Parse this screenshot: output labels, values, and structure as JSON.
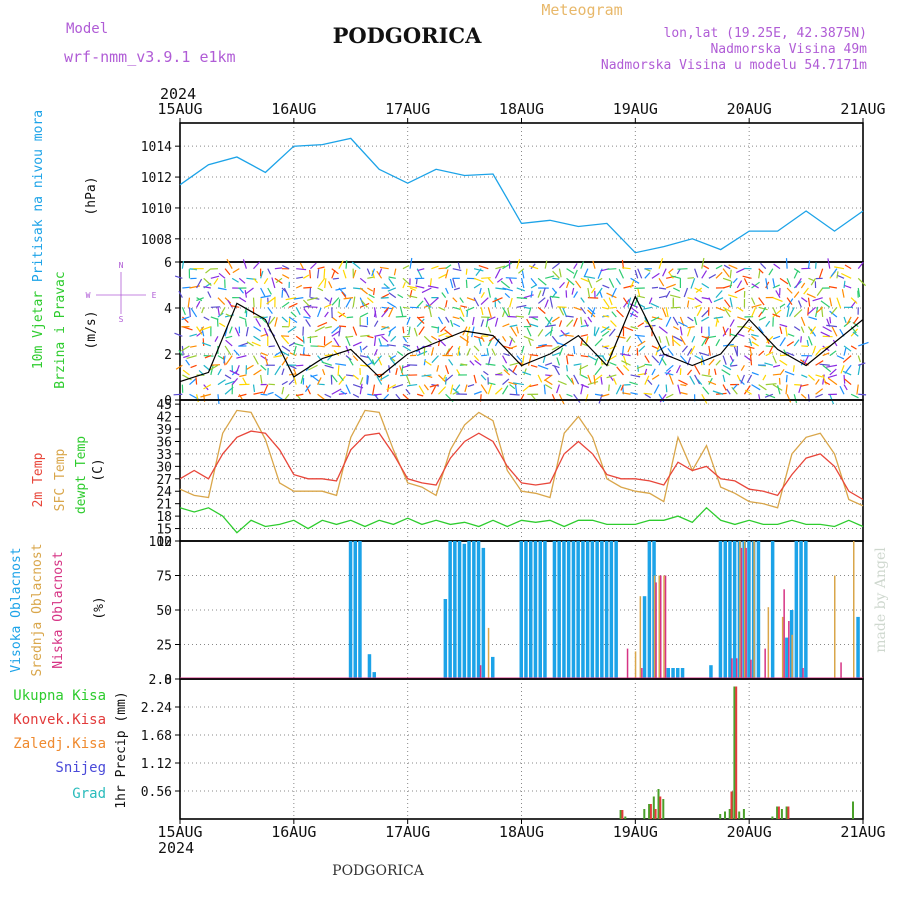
{
  "header": {
    "model_label": "Model",
    "model_name": "wrf-nmm_v3.9.1 e1km",
    "title": "PODGORICA",
    "product": "Meteogram",
    "lonlat": "lon,lat (19.25E, 42.3875N)",
    "elevation": "Nadmorska Visina 49m",
    "model_elevation": "Nadmorska Visina u modelu 54.7171m"
  },
  "time_axis": {
    "year": "2024",
    "labels": [
      "15AUG",
      "16AUG",
      "17AUG",
      "18AUG",
      "19AUG",
      "20AUG",
      "21AUG"
    ]
  },
  "footer": {
    "station": "PODGORICA",
    "credit": "made by Angel"
  },
  "colors": {
    "pressure": "#1ca3e8",
    "temp2m": "#e8463a",
    "sfc": "#d9a64a",
    "dewpt": "#2ecc2e",
    "cloud_high": "#1ca3e8",
    "cloud_mid": "#d9a64a",
    "cloud_low": "#d63384",
    "precip_total": "#4aa02a",
    "precip_conv": "#e23b3b",
    "precip_snow": "#4a4ad9",
    "precip_grad": "#2abcbc"
  },
  "panels": {
    "pressure": {
      "label": "Pritisak na nivou mora",
      "unit": "(hPa)"
    },
    "wind": {
      "label1": "10m Vjetar",
      "label2": "Brzina i Pravac",
      "unit": "(m/s)",
      "compass_s": "S",
      "compass_n": "N",
      "compass_w": "W",
      "compass_e": "E"
    },
    "temp": {
      "label_2m": "2m Temp",
      "label_sfc": "SFC Temp",
      "label_dew": "dewpt Temp",
      "unit": "(C)"
    },
    "cloud": {
      "label_high": "Visoka Oblacnost",
      "label_mid": "Srednja Oblacnost",
      "label_low": "Niska Oblacnost",
      "unit": "(%)"
    },
    "precip": {
      "legend": [
        "Ukupna Kisa",
        "Konvek.Kisa",
        "Zaledj.Kisa",
        "Snijeg",
        "Grad"
      ],
      "unit": "1hr Precip (mm)"
    }
  },
  "chart_data": [
    {
      "type": "line",
      "title": "Pritisak na nivou mora",
      "ylabel": "(hPa)",
      "ylim": [
        1006.5,
        1015.5
      ],
      "yticks": [
        "1008",
        "1010",
        "1012",
        "1014"
      ],
      "x_hours": [
        0,
        6,
        12,
        18,
        24,
        30,
        36,
        42,
        48,
        54,
        60,
        66,
        72,
        78,
        84,
        90,
        96,
        102,
        108,
        114,
        120,
        126,
        132,
        138,
        144
      ],
      "series": [
        {
          "values": [
            1011.5,
            1012.8,
            1013.3,
            1012.3,
            1014.0,
            1014.1,
            1014.5,
            1012.5,
            1011.6,
            1012.5,
            1012.1,
            1012.2,
            1009.0,
            1009.2,
            1008.8,
            1009.0,
            1007.1,
            1007.5,
            1008.0,
            1007.3,
            1008.5,
            1008.5,
            1009.8,
            1008.5,
            1009.8
          ]
        }
      ],
      "grid": true
    },
    {
      "type": "line",
      "title": "10m Vjetar Brzina i Pravac",
      "ylabel": "(m/s)",
      "ylim": [
        0,
        6
      ],
      "yticks": [
        "0",
        "2",
        "4",
        "6"
      ],
      "x_hours": [
        0,
        6,
        12,
        18,
        24,
        30,
        36,
        42,
        48,
        54,
        60,
        66,
        72,
        78,
        84,
        90,
        96,
        102,
        108,
        114,
        120,
        126,
        132,
        138,
        144
      ],
      "series": [
        {
          "values": [
            0.8,
            1.2,
            4.2,
            3.5,
            1.0,
            1.8,
            2.2,
            1.0,
            2.0,
            2.5,
            3.0,
            2.8,
            1.5,
            2.0,
            2.8,
            1.5,
            4.5,
            2.0,
            1.5,
            2.0,
            3.5,
            2.2,
            1.5,
            2.5,
            3.5
          ]
        }
      ],
      "grid": true
    },
    {
      "type": "line",
      "title": "2m Temp / SFC Temp / dewpt Temp",
      "ylabel": "(C)",
      "ylim": [
        12,
        46
      ],
      "yticks": [
        "12",
        "15",
        "18",
        "21",
        "24",
        "27",
        "30",
        "33",
        "36",
        "39",
        "42",
        "45"
      ],
      "x_hours": [
        0,
        3,
        6,
        9,
        12,
        15,
        18,
        21,
        24,
        27,
        30,
        33,
        36,
        39,
        42,
        45,
        48,
        51,
        54,
        57,
        60,
        63,
        66,
        69,
        72,
        75,
        78,
        81,
        84,
        87,
        90,
        93,
        96,
        99,
        102,
        105,
        108,
        111,
        114,
        117,
        120,
        123,
        126,
        129,
        132,
        135,
        138,
        141,
        144
      ],
      "series": [
        {
          "name": "2m Temp",
          "values": [
            27,
            29,
            27,
            33,
            37,
            38.5,
            38,
            34,
            28,
            27,
            27,
            26.5,
            34,
            37.5,
            38,
            33,
            27,
            26,
            25.5,
            32,
            36,
            38,
            36,
            30,
            26,
            25.5,
            26,
            33,
            36,
            33,
            28,
            27,
            27,
            26.5,
            25.5,
            31,
            29,
            30,
            27,
            26.5,
            24.5,
            24,
            23,
            28,
            32,
            33,
            30,
            24,
            22
          ]
        },
        {
          "name": "SFC Temp",
          "values": [
            24.5,
            23,
            22.5,
            38,
            43.5,
            43,
            36.5,
            26,
            24,
            24,
            24,
            23,
            37,
            43.5,
            43,
            34,
            26,
            25,
            23,
            34,
            40,
            43,
            41,
            29,
            24,
            23.5,
            22.5,
            38,
            42,
            37,
            27,
            25,
            24,
            23.5,
            21.5,
            37,
            29,
            35,
            25,
            23.5,
            21.5,
            21,
            20,
            33,
            37,
            38,
            33,
            22,
            20.5
          ]
        },
        {
          "name": "dewpt Temp",
          "values": [
            20,
            19,
            20,
            18,
            14,
            17,
            15.5,
            16,
            17,
            15,
            17,
            16,
            17,
            15.5,
            17,
            16,
            17.5,
            16,
            17,
            16,
            16.5,
            15.5,
            17,
            15.5,
            17,
            16.5,
            17,
            15.5,
            17,
            17,
            16,
            16,
            16,
            17,
            17,
            18,
            16.5,
            20,
            17,
            16,
            17,
            16,
            16,
            17,
            16,
            16,
            15.5,
            17,
            15.5
          ]
        }
      ],
      "grid": true
    },
    {
      "type": "bar",
      "title": "Visoka / Srednja / Niska Oblacnost",
      "ylabel": "(%)",
      "ylim": [
        0,
        100
      ],
      "yticks": [
        "0",
        "25",
        "50",
        "75",
        "100"
      ],
      "series": [
        {
          "name": "Visoka Oblacnost",
          "x_hours": [
            36,
            37,
            38,
            40,
            41,
            56,
            57,
            58,
            59,
            60,
            61,
            62,
            63,
            64,
            66,
            72,
            73,
            74,
            75,
            76,
            77,
            79,
            80,
            81,
            82,
            83,
            84,
            85,
            86,
            87,
            88,
            89,
            90,
            91,
            92,
            98,
            99,
            100,
            103,
            104,
            105,
            106,
            112,
            114,
            115,
            116,
            117,
            118,
            119,
            120,
            121,
            122,
            125,
            128,
            129,
            130,
            131,
            132,
            143
          ],
          "values": [
            100,
            100,
            100,
            18,
            5,
            58,
            100,
            100,
            100,
            98,
            100,
            100,
            100,
            95,
            16,
            100,
            100,
            100,
            100,
            100,
            100,
            100,
            100,
            100,
            100,
            100,
            100,
            100,
            100,
            100,
            100,
            100,
            100,
            100,
            100,
            60,
            100,
            100,
            8,
            8,
            8,
            8,
            10,
            100,
            100,
            100,
            100,
            100,
            100,
            100,
            100,
            100,
            100,
            30,
            50,
            100,
            100,
            100,
            45
          ]
        },
        {
          "name": "Srednja Oblacnost",
          "x_hours": [
            65,
            96,
            97,
            100,
            101,
            102,
            118,
            119,
            121,
            124,
            127,
            129,
            138,
            142
          ],
          "values": [
            37,
            20,
            60,
            75,
            75,
            75,
            100,
            100,
            100,
            52,
            45,
            32,
            75,
            100
          ]
        },
        {
          "name": "Niska Oblacnost",
          "x_hours": [
            63,
            94,
            97,
            100,
            101,
            102,
            116,
            117,
            118,
            119,
            120,
            123,
            127,
            128,
            131,
            139
          ],
          "values": [
            10,
            22,
            8,
            70,
            75,
            75,
            15,
            15,
            95,
            95,
            14,
            22,
            65,
            42,
            8,
            12
          ]
        }
      ],
      "grid": true
    },
    {
      "type": "bar",
      "title": "1hr Precip",
      "ylabel": "1hr Precip (mm)",
      "ylim": [
        0,
        2.8
      ],
      "yticks": [
        "0.56",
        "1.12",
        "1.68",
        "2.24",
        "2.8"
      ],
      "series": [
        {
          "name": "Ukupna Kisa",
          "x_hours": [
            93,
            94,
            98,
            99,
            100,
            101,
            102,
            114,
            115,
            116,
            116.5,
            117,
            118,
            119,
            125,
            126,
            127,
            128,
            142
          ],
          "values": [
            0.18,
            0.05,
            0.2,
            0.3,
            0.45,
            0.6,
            0.4,
            0.1,
            0.15,
            0.2,
            0.55,
            2.65,
            0.15,
            0.2,
            0.05,
            0.25,
            0.2,
            0.25,
            0.35
          ]
        },
        {
          "name": "Konvek.Kisa",
          "x_hours": [
            93,
            99,
            100,
            101,
            116,
            117,
            126,
            128
          ],
          "values": [
            0.18,
            0.3,
            0.2,
            0.45,
            0.55,
            2.65,
            0.25,
            0.25
          ]
        }
      ],
      "grid": true
    }
  ]
}
